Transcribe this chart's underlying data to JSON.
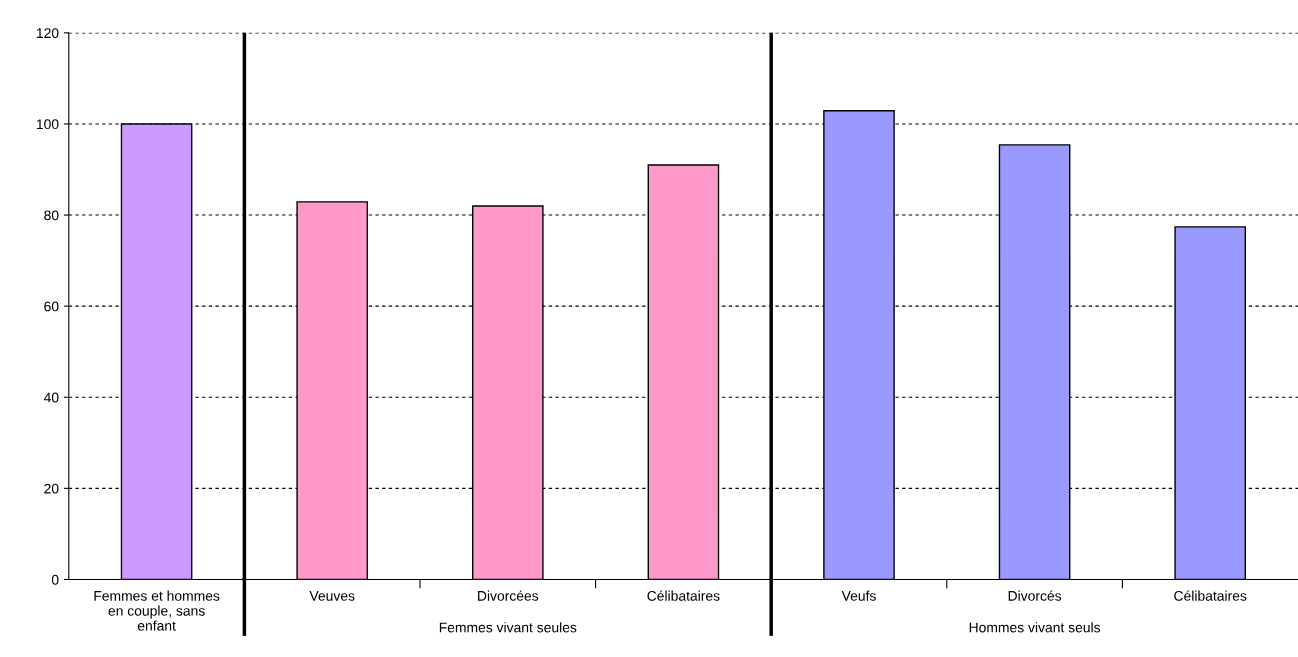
{
  "chart_data": {
    "type": "bar",
    "categories": [
      "Femmes et hommes\nen couple, sans\nenfant",
      "Veuves",
      "Divorcées",
      "Célibataires",
      "Veufs",
      "Divorcés",
      "Célibataires"
    ],
    "values": [
      100,
      82.9,
      82.0,
      91.0,
      102.9,
      95.4,
      77.4
    ],
    "colors": [
      "#cc99ff",
      "#ff99cc",
      "#ff99cc",
      "#ff99cc",
      "#9999ff",
      "#9999ff",
      "#9999ff"
    ],
    "ylim": [
      0,
      120
    ],
    "yticks": [
      0,
      20,
      40,
      60,
      80,
      100,
      120
    ],
    "grid": "y",
    "annotations": [
      "Femmes vivant seules",
      "Hommes vivant seuls"
    ]
  }
}
